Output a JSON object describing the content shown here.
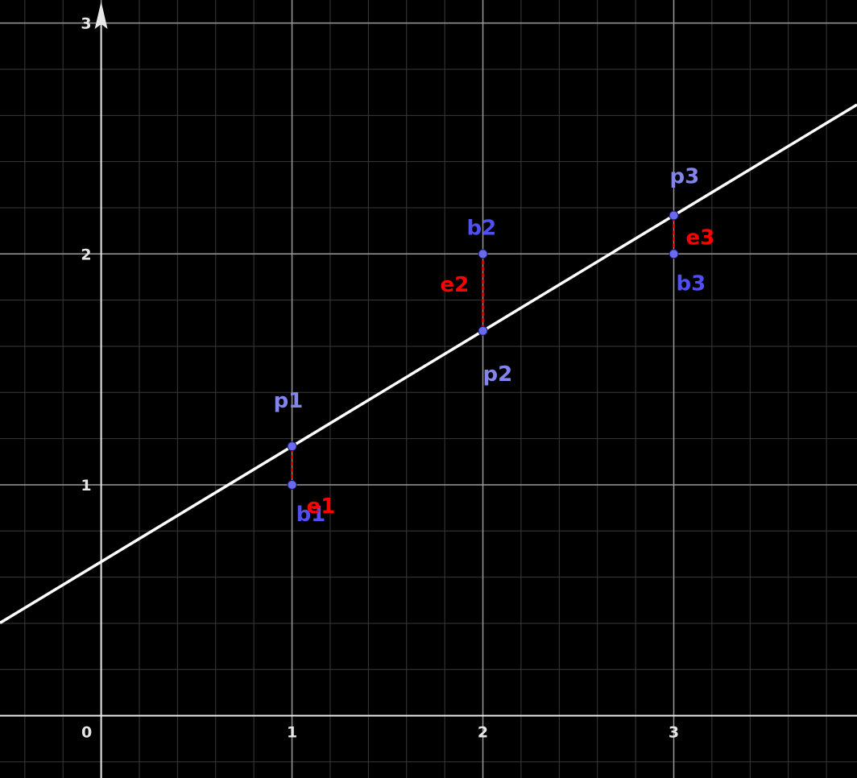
{
  "chart_data": {
    "type": "scatter",
    "xlim": [
      -0.53,
      3.96
    ],
    "ylim": [
      -0.27,
      3.1
    ],
    "grid": true,
    "x_ticks": [
      "0",
      "1",
      "2",
      "3"
    ],
    "y_ticks": [
      "1",
      "2",
      "3"
    ],
    "line": {
      "slope": 0.5,
      "intercept": 0.6667,
      "color": "#ffffff"
    },
    "data_points": [
      {
        "label": "b1",
        "x": 1,
        "y": 1
      },
      {
        "label": "b2",
        "x": 2,
        "y": 2
      },
      {
        "label": "b3",
        "x": 3,
        "y": 2
      }
    ],
    "projections": [
      {
        "label": "p1",
        "x": 1,
        "y": 1.1667
      },
      {
        "label": "p2",
        "x": 2,
        "y": 1.6667
      },
      {
        "label": "p3",
        "x": 3,
        "y": 2.1667
      }
    ],
    "errors": [
      {
        "label": "e1",
        "x": 1
      },
      {
        "label": "e2",
        "x": 2
      },
      {
        "label": "e3",
        "x": 3
      }
    ],
    "colors": {
      "background": "#000000",
      "grid_minor": "#3a3a3a",
      "grid_major": "#9a9a9a",
      "axis": "#e8e8e8",
      "point_fill": "#6a6af0",
      "point_label_b": "#4f4ff2",
      "point_label_p": "#8484ee",
      "error": "#ff0000"
    }
  }
}
